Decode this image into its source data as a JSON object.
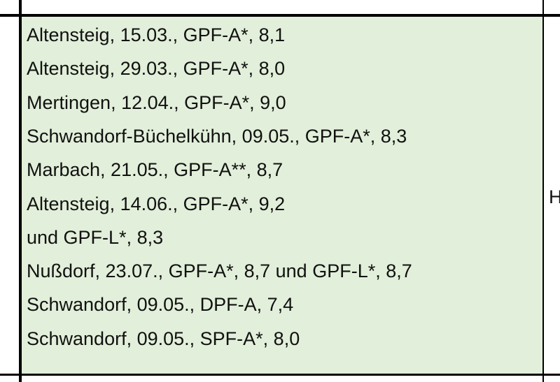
{
  "table": {
    "cell_lines": [
      "Altensteig, 15.03., GPF-A*, 8,1",
      "Altensteig, 29.03., GPF-A*, 8,0",
      "Mertingen, 12.04., GPF-A*, 9,0",
      "Schwandorf-Büchelkühn, 09.05., GPF-A*, 8,3",
      "Marbach, 21.05., GPF-A**, 8,7",
      "Altensteig, 14.06., GPF-A*, 9,2",
      "und GPF-L*, 8,3",
      "Nußdorf, 23.07., GPF-A*, 8,7 und GPF-L*, 8,7",
      "Schwandorf, 09.05., DPF-A, 7,4",
      "Schwandorf, 09.05., SPF-A*, 8,0"
    ],
    "next_cell": "H"
  }
}
